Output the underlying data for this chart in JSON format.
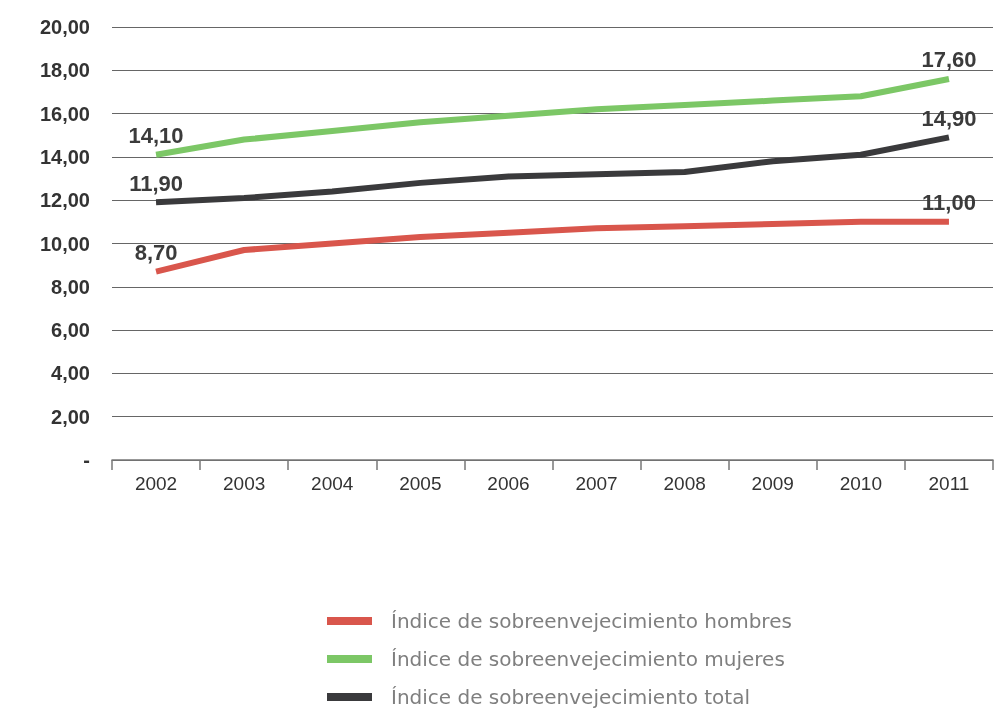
{
  "chart_data": {
    "type": "line",
    "categories": [
      "2002",
      "2003",
      "2004",
      "2005",
      "2006",
      "2007",
      "2008",
      "2009",
      "2010",
      "2011"
    ],
    "series": [
      {
        "name": "Índice de sobreenvejecimiento hombres",
        "color": "#d9564c",
        "values": [
          8.7,
          9.7,
          10.0,
          10.3,
          10.5,
          10.7,
          10.8,
          10.9,
          11.0,
          11.0
        ],
        "value_labels": [
          "8,70",
          null,
          null,
          null,
          null,
          null,
          null,
          null,
          null,
          "11,00"
        ]
      },
      {
        "name": "Índice de sobreenvejecimiento mujeres",
        "color": "#7cc766",
        "values": [
          14.1,
          14.8,
          15.2,
          15.6,
          15.9,
          16.2,
          16.4,
          16.6,
          16.8,
          17.6
        ],
        "value_labels": [
          "14,10",
          null,
          null,
          null,
          null,
          null,
          null,
          null,
          null,
          "17,60"
        ]
      },
      {
        "name": "Índice de sobreenvejecimiento total",
        "color": "#3a3a3c",
        "values": [
          11.9,
          12.1,
          12.4,
          12.8,
          13.1,
          13.2,
          13.3,
          13.8,
          14.1,
          14.9
        ],
        "value_labels": [
          "11,90",
          null,
          null,
          null,
          null,
          null,
          null,
          null,
          null,
          "14,90"
        ]
      }
    ],
    "ylim": [
      0,
      20
    ],
    "yticks": [
      {
        "value": 0,
        "label": "-"
      },
      {
        "value": 2,
        "label": "2,00"
      },
      {
        "value": 4,
        "label": "4,00"
      },
      {
        "value": 6,
        "label": "6,00"
      },
      {
        "value": 8,
        "label": "8,00"
      },
      {
        "value": 10,
        "label": "10,00"
      },
      {
        "value": 12,
        "label": "12,00"
      },
      {
        "value": 14,
        "label": "14,00"
      },
      {
        "value": 16,
        "label": "16,00"
      },
      {
        "value": 18,
        "label": "18,00"
      },
      {
        "value": 20,
        "label": "20,00"
      }
    ],
    "grid": "y",
    "legend": "bottom",
    "line_style": "solid"
  }
}
